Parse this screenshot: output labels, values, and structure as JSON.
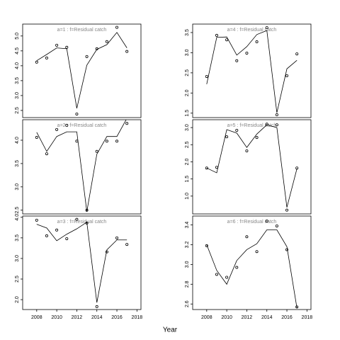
{
  "chart_data": [
    {
      "type": "line",
      "title": "a=1 : f=Residual catch",
      "x": [
        2008,
        2009,
        2010,
        2011,
        2012,
        2013,
        2014,
        2015,
        2016,
        2017
      ],
      "series": [
        {
          "mode": "markers",
          "color": "#000000",
          "values": [
            4.12,
            4.26,
            4.69,
            4.62,
            2.38,
            4.31,
            4.57,
            4.81,
            5.29,
            4.48
          ]
        },
        {
          "mode": "lines",
          "color": "#000000",
          "values": [
            4.17,
            4.38,
            4.6,
            4.57,
            2.57,
            4.02,
            4.55,
            4.71,
            5.12,
            4.6
          ]
        }
      ],
      "xlim": [
        2006.6,
        2018.4
      ],
      "ylim": [
        2.26,
        5.4
      ],
      "yticks": [
        {
          "value": 2.5,
          "label": "2.5"
        },
        {
          "value": 3,
          "label": "3.0"
        },
        {
          "value": 3.5,
          "label": "3.5"
        },
        {
          "value": 4,
          "label": "4.0"
        },
        {
          "value": 4.5,
          "label": "4.5"
        },
        {
          "value": 5,
          "label": "5.0"
        }
      ]
    },
    {
      "type": "line",
      "title": "a=2 : f=Residual catch",
      "x": [
        2008,
        2009,
        2010,
        2011,
        2012,
        2013,
        2014,
        2015,
        2016,
        2017
      ],
      "series": [
        {
          "mode": "markers",
          "color": "#000000",
          "values": [
            4.06,
            3.71,
            4.23,
            4.32,
            3.98,
            2.5,
            3.76,
            3.98,
            3.98,
            4.36
          ]
        },
        {
          "mode": "lines",
          "color": "#000000",
          "values": [
            4.17,
            3.76,
            4.08,
            4.18,
            4.18,
            2.47,
            3.7,
            4.08,
            4.08,
            4.47
          ]
        }
      ],
      "xlim": [
        2006.6,
        2018.4
      ],
      "ylim": [
        2.42,
        4.44
      ],
      "yticks": [
        {
          "value": 2.5,
          "label": "2.5"
        },
        {
          "value": 3,
          "label": "3.0"
        },
        {
          "value": 3.5,
          "label": "3.5"
        },
        {
          "value": 4,
          "label": "4.0"
        }
      ]
    },
    {
      "type": "line",
      "title": "a=3 : f=Residual catch",
      "x": [
        2008,
        2009,
        2010,
        2011,
        2012,
        2013,
        2014,
        2015,
        2016,
        2017
      ],
      "series": [
        {
          "mode": "markers",
          "color": "#000000",
          "values": [
            3.93,
            3.55,
            3.69,
            3.48,
            3.95,
            3.86,
            1.83,
            3.16,
            3.5,
            3.34
          ]
        },
        {
          "mode": "lines",
          "color": "#000000",
          "values": [
            3.83,
            3.74,
            3.43,
            3.59,
            3.72,
            3.88,
            1.93,
            3.21,
            3.45,
            3.45
          ]
        }
      ],
      "xlim": [
        2006.6,
        2018.4
      ],
      "ylim": [
        1.76,
        4.03
      ],
      "xticks": [
        2008,
        2010,
        2012,
        2014,
        2016,
        2018
      ],
      "yticks": [
        {
          "value": 2,
          "label": "2.0"
        },
        {
          "value": 2.5,
          "label": "2.5"
        },
        {
          "value": 3,
          "label": "3.0"
        },
        {
          "value": 3.5,
          "label": "3.5"
        },
        {
          "value": 4,
          "label": "4.0"
        }
      ]
    },
    {
      "type": "line",
      "title": "a=4 : f=Residual catch",
      "x": [
        2008,
        2009,
        2010,
        2011,
        2012,
        2013,
        2014,
        2015,
        2016,
        2017
      ],
      "series": [
        {
          "mode": "markers",
          "color": "#000000",
          "values": [
            2.41,
            3.43,
            3.32,
            2.8,
            2.99,
            3.27,
            3.62,
            1.46,
            2.43,
            2.97
          ]
        },
        {
          "mode": "lines",
          "color": "#000000",
          "values": [
            2.22,
            3.38,
            3.39,
            2.94,
            3.15,
            3.45,
            3.55,
            1.51,
            2.6,
            2.81
          ]
        }
      ],
      "xlim": [
        2006.6,
        2018.4
      ],
      "ylim": [
        1.39,
        3.71
      ],
      "yticks": [
        {
          "value": 1.5,
          "label": "1.5"
        },
        {
          "value": 2,
          "label": "2.0"
        },
        {
          "value": 2.5,
          "label": "2.5"
        },
        {
          "value": 3,
          "label": "3.0"
        },
        {
          "value": 3.5,
          "label": "3.5"
        }
      ]
    },
    {
      "type": "line",
      "title": "a=5 : f=Residual catch",
      "x": [
        2008,
        2009,
        2010,
        2011,
        2012,
        2013,
        2014,
        2015,
        2016,
        2017
      ],
      "series": [
        {
          "mode": "markers",
          "color": "#000000",
          "values": [
            1.82,
            1.84,
            2.73,
            2.92,
            2.32,
            2.71,
            3.1,
            3.08,
            0.59,
            1.82
          ]
        },
        {
          "mode": "lines",
          "color": "#000000",
          "values": [
            1.82,
            1.68,
            2.94,
            2.84,
            2.42,
            2.81,
            3.08,
            3.0,
            0.67,
            1.8
          ]
        }
      ],
      "xlim": [
        2006.6,
        2018.4
      ],
      "ylim": [
        0.48,
        3.23
      ],
      "yticks": [
        {
          "value": 1,
          "label": "1.0"
        },
        {
          "value": 1.5,
          "label": "1.5"
        },
        {
          "value": 2,
          "label": "2.0"
        },
        {
          "value": 2.5,
          "label": "2.5"
        },
        {
          "value": 3,
          "label": "3.0"
        }
      ]
    },
    {
      "type": "line",
      "title": "a=6 : f=Residual catch",
      "x": [
        2008,
        2009,
        2010,
        2011,
        2012,
        2013,
        2014,
        2015,
        2016,
        2017
      ],
      "series": [
        {
          "mode": "markers",
          "color": "#000000",
          "values": [
            3.19,
            2.9,
            2.87,
            2.97,
            3.28,
            3.13,
            3.44,
            3.39,
            3.15,
            2.57
          ]
        },
        {
          "mode": "lines",
          "color": "#000000",
          "values": [
            3.2,
            2.94,
            2.8,
            3.04,
            3.15,
            3.21,
            3.35,
            3.35,
            3.18,
            2.56
          ]
        }
      ],
      "xlim": [
        2006.6,
        2018.4
      ],
      "ylim": [
        2.544,
        3.49
      ],
      "xticks": [
        2008,
        2010,
        2012,
        2014,
        2016,
        2018
      ],
      "yticks": [
        2.6,
        2.8,
        {
          "value": 3,
          "label": "3.0"
        },
        3.2,
        3.4
      ]
    }
  ],
  "xlabel": "Year"
}
